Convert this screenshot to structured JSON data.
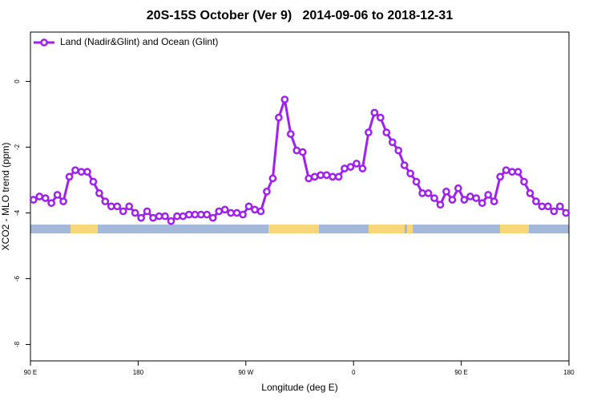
{
  "chart_data": {
    "type": "line",
    "title": "20S-15S October (Ver 9)   2014-09-06 to 2018-12-31",
    "x_label": "Longitude (deg E)",
    "y_label": "XCO2 - MLO trend (ppm)",
    "xlim": [
      90,
      540
    ],
    "ylim": [
      -8.5,
      1.5
    ],
    "xticks": [
      {
        "value": 90,
        "label": "90 E"
      },
      180,
      {
        "value": 270,
        "label": "90 W"
      },
      {
        "value": 360,
        "label": "0"
      },
      {
        "value": 450,
        "label": "90 E"
      },
      {
        "value": 540,
        "label": "180"
      }
    ],
    "yticks": [
      0,
      -2,
      -4,
      -6,
      -8
    ],
    "legend": "top-left",
    "x": [
      92.5,
      97.5,
      102.5,
      107.5,
      112.5,
      117.5,
      122.5,
      127.5,
      132.5,
      137.5,
      142.5,
      147.5,
      152.5,
      157.5,
      162.5,
      167.5,
      172.5,
      177.5,
      182.5,
      187.5,
      192.5,
      197.5,
      202.5,
      207.5,
      212.5,
      217.5,
      222.5,
      227.5,
      232.5,
      237.5,
      242.5,
      247.5,
      252.5,
      257.5,
      262.5,
      267.5,
      272.5,
      277.5,
      282.5,
      287.5,
      292.5,
      297.5,
      302.5,
      307.5,
      312.5,
      317.5,
      322.5,
      327.5,
      332.5,
      337.5,
      342.5,
      347.5,
      352.5,
      357.5,
      362.5,
      367.5,
      372.5,
      377.5,
      382.5,
      387.5,
      392.5,
      397.5,
      402.5,
      407.5,
      412.5,
      417.5,
      422.5,
      427.5,
      432.5,
      437.5,
      442.5,
      447.5,
      452.5,
      457.5,
      462.5,
      467.5,
      472.5,
      477.5,
      482.5,
      487.5,
      492.5,
      497.5,
      502.5,
      507.5,
      512.5,
      517.5,
      522.5,
      527.5,
      532.5,
      537.5
    ],
    "series": [
      {
        "name": "Land (Nadir&Glint) and Ocean (Glint)",
        "color": "#a020f0",
        "values": [
          -3.6,
          -3.5,
          -3.55,
          -3.7,
          -3.45,
          -3.65,
          -2.9,
          -2.7,
          -2.75,
          -2.75,
          -3.05,
          -3.4,
          -3.65,
          -3.8,
          -3.8,
          -3.95,
          -3.8,
          -4.0,
          -4.15,
          -3.95,
          -4.15,
          -4.1,
          -4.1,
          -4.25,
          -4.1,
          -4.1,
          -4.05,
          -4.05,
          -4.05,
          -4.05,
          -4.15,
          -3.95,
          -3.9,
          -4.0,
          -4.0,
          -4.05,
          -3.8,
          -3.9,
          -3.95,
          -3.35,
          -2.95,
          -1.1,
          -0.55,
          -1.6,
          -2.1,
          -2.15,
          -2.95,
          -2.9,
          -2.85,
          -2.85,
          -2.9,
          -2.9,
          -2.65,
          -2.6,
          -2.5,
          -2.65,
          -1.55,
          -0.95,
          -1.1,
          -1.55,
          -1.85,
          -2.1,
          -2.55,
          -2.8,
          -3.05,
          -3.4,
          -3.4,
          -3.55,
          -3.75,
          -3.35,
          -3.6,
          -3.25,
          -3.6,
          -3.5,
          -3.55,
          -3.7,
          -3.45,
          -3.65,
          -2.9,
          -2.7,
          -2.75,
          -2.75,
          -3.05,
          -3.4,
          -3.65,
          -3.8,
          -3.8,
          -3.95,
          -3.8,
          -4.0
        ]
      }
    ]
  }
}
